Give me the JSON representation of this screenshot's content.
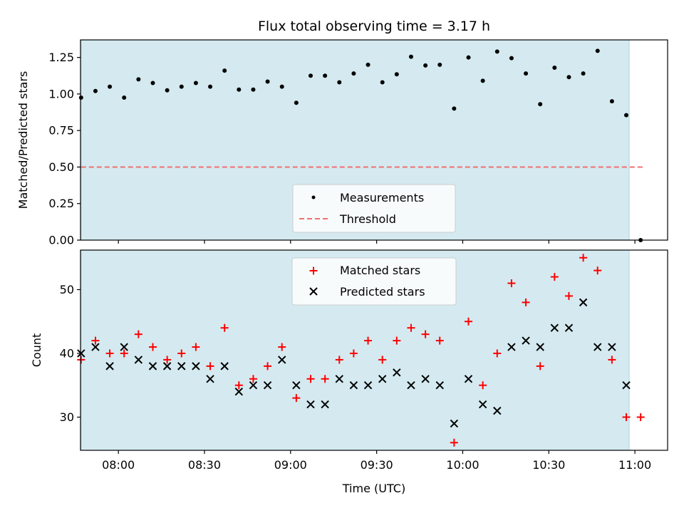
{
  "chart_data": [
    {
      "type": "scatter",
      "title": "Flux total observing time = 3.17 h",
      "ylabel": "Matched/Predicted stars",
      "xlabel": "",
      "ylim": [
        0.0,
        1.37
      ],
      "xlim": [
        "07:47",
        "11:11"
      ],
      "yticks": [
        "0.00",
        "0.25",
        "0.50",
        "0.75",
        "1.00",
        "1.25"
      ],
      "observing_window": [
        "07:47",
        "10:58"
      ],
      "observing_window_color": "#d4eaf0",
      "threshold": 0.5,
      "threshold_range": [
        "07:47",
        "11:03"
      ],
      "threshold_color": "#f07070",
      "legend": {
        "position": "lower-center",
        "entries": [
          "Measurements",
          "Threshold"
        ]
      },
      "series": [
        {
          "name": "Measurements",
          "color": "#000000",
          "points": [
            [
              "07:47",
              0.975
            ],
            [
              "07:52",
              1.02
            ],
            [
              "07:57",
              1.05
            ],
            [
              "08:02",
              0.975
            ],
            [
              "08:07",
              1.1
            ],
            [
              "08:12",
              1.075
            ],
            [
              "08:17",
              1.025
            ],
            [
              "08:22",
              1.05
            ],
            [
              "08:27",
              1.075
            ],
            [
              "08:32",
              1.05
            ],
            [
              "08:37",
              1.16
            ],
            [
              "08:42",
              1.03
            ],
            [
              "08:47",
              1.03
            ],
            [
              "08:52",
              1.085
            ],
            [
              "08:57",
              1.05
            ],
            [
              "09:02",
              0.94
            ],
            [
              "09:07",
              1.125
            ],
            [
              "09:12",
              1.125
            ],
            [
              "09:17",
              1.08
            ],
            [
              "09:22",
              1.14
            ],
            [
              "09:27",
              1.2
            ],
            [
              "09:32",
              1.08
            ],
            [
              "09:37",
              1.135
            ],
            [
              "09:42",
              1.255
            ],
            [
              "09:47",
              1.195
            ],
            [
              "09:52",
              1.2
            ],
            [
              "09:57",
              0.9
            ],
            [
              "10:02",
              1.25
            ],
            [
              "10:07",
              1.09
            ],
            [
              "10:12",
              1.29
            ],
            [
              "10:17",
              1.245
            ],
            [
              "10:22",
              1.14
            ],
            [
              "10:27",
              0.93
            ],
            [
              "10:32",
              1.18
            ],
            [
              "10:37",
              1.115
            ],
            [
              "10:42",
              1.14
            ],
            [
              "10:47",
              1.295
            ],
            [
              "10:52",
              0.95
            ],
            [
              "10:57",
              0.855
            ],
            [
              "11:02",
              0.0
            ]
          ]
        }
      ]
    },
    {
      "type": "scatter",
      "title": "",
      "ylabel": "Count",
      "xlabel": "Time (UTC)",
      "ylim": [
        24.8,
        56.2
      ],
      "xlim": [
        "07:47",
        "11:11"
      ],
      "yticks": [
        "30",
        "40",
        "50"
      ],
      "xticks": [
        "08:00",
        "08:30",
        "09:00",
        "09:30",
        "10:00",
        "10:30",
        "11:00"
      ],
      "observing_window": [
        "07:47",
        "10:58"
      ],
      "legend": {
        "position": "upper-center",
        "entries": [
          "Matched stars",
          "Predicted stars"
        ]
      },
      "series": [
        {
          "name": "Matched stars",
          "marker": "plus",
          "color": "#ff0000",
          "points": [
            [
              "07:47",
              39
            ],
            [
              "07:52",
              42
            ],
            [
              "07:57",
              40
            ],
            [
              "08:02",
              40
            ],
            [
              "08:07",
              43
            ],
            [
              "08:12",
              41
            ],
            [
              "08:17",
              39
            ],
            [
              "08:22",
              40
            ],
            [
              "08:27",
              41
            ],
            [
              "08:32",
              38
            ],
            [
              "08:37",
              44
            ],
            [
              "08:42",
              35
            ],
            [
              "08:47",
              36
            ],
            [
              "08:52",
              38
            ],
            [
              "08:57",
              41
            ],
            [
              "09:02",
              33
            ],
            [
              "09:07",
              36
            ],
            [
              "09:12",
              36
            ],
            [
              "09:17",
              39
            ],
            [
              "09:22",
              40
            ],
            [
              "09:27",
              42
            ],
            [
              "09:32",
              39
            ],
            [
              "09:37",
              42
            ],
            [
              "09:42",
              44
            ],
            [
              "09:47",
              43
            ],
            [
              "09:52",
              42
            ],
            [
              "09:57",
              26
            ],
            [
              "10:02",
              45
            ],
            [
              "10:07",
              35
            ],
            [
              "10:12",
              40
            ],
            [
              "10:17",
              51
            ],
            [
              "10:22",
              48
            ],
            [
              "10:27",
              38
            ],
            [
              "10:32",
              52
            ],
            [
              "10:37",
              49
            ],
            [
              "10:42",
              55
            ],
            [
              "10:47",
              53
            ],
            [
              "10:52",
              39
            ],
            [
              "10:57",
              30
            ],
            [
              "11:02",
              30
            ]
          ]
        },
        {
          "name": "Predicted stars",
          "marker": "x",
          "color": "#000000",
          "points": [
            [
              "07:47",
              40
            ],
            [
              "07:52",
              41
            ],
            [
              "07:57",
              38
            ],
            [
              "08:02",
              41
            ],
            [
              "08:07",
              39
            ],
            [
              "08:12",
              38
            ],
            [
              "08:17",
              38
            ],
            [
              "08:22",
              38
            ],
            [
              "08:27",
              38
            ],
            [
              "08:32",
              36
            ],
            [
              "08:37",
              38
            ],
            [
              "08:42",
              34
            ],
            [
              "08:47",
              35
            ],
            [
              "08:52",
              35
            ],
            [
              "08:57",
              39
            ],
            [
              "09:02",
              35
            ],
            [
              "09:07",
              32
            ],
            [
              "09:12",
              32
            ],
            [
              "09:17",
              36
            ],
            [
              "09:22",
              35
            ],
            [
              "09:27",
              35
            ],
            [
              "09:32",
              36
            ],
            [
              "09:37",
              37
            ],
            [
              "09:42",
              35
            ],
            [
              "09:47",
              36
            ],
            [
              "09:52",
              35
            ],
            [
              "09:57",
              29
            ],
            [
              "10:02",
              36
            ],
            [
              "10:07",
              32
            ],
            [
              "10:12",
              31
            ],
            [
              "10:17",
              41
            ],
            [
              "10:22",
              42
            ],
            [
              "10:27",
              41
            ],
            [
              "10:32",
              44
            ],
            [
              "10:37",
              44
            ],
            [
              "10:42",
              48
            ],
            [
              "10:47",
              41
            ],
            [
              "10:52",
              41
            ],
            [
              "10:57",
              35
            ]
          ]
        }
      ]
    }
  ]
}
